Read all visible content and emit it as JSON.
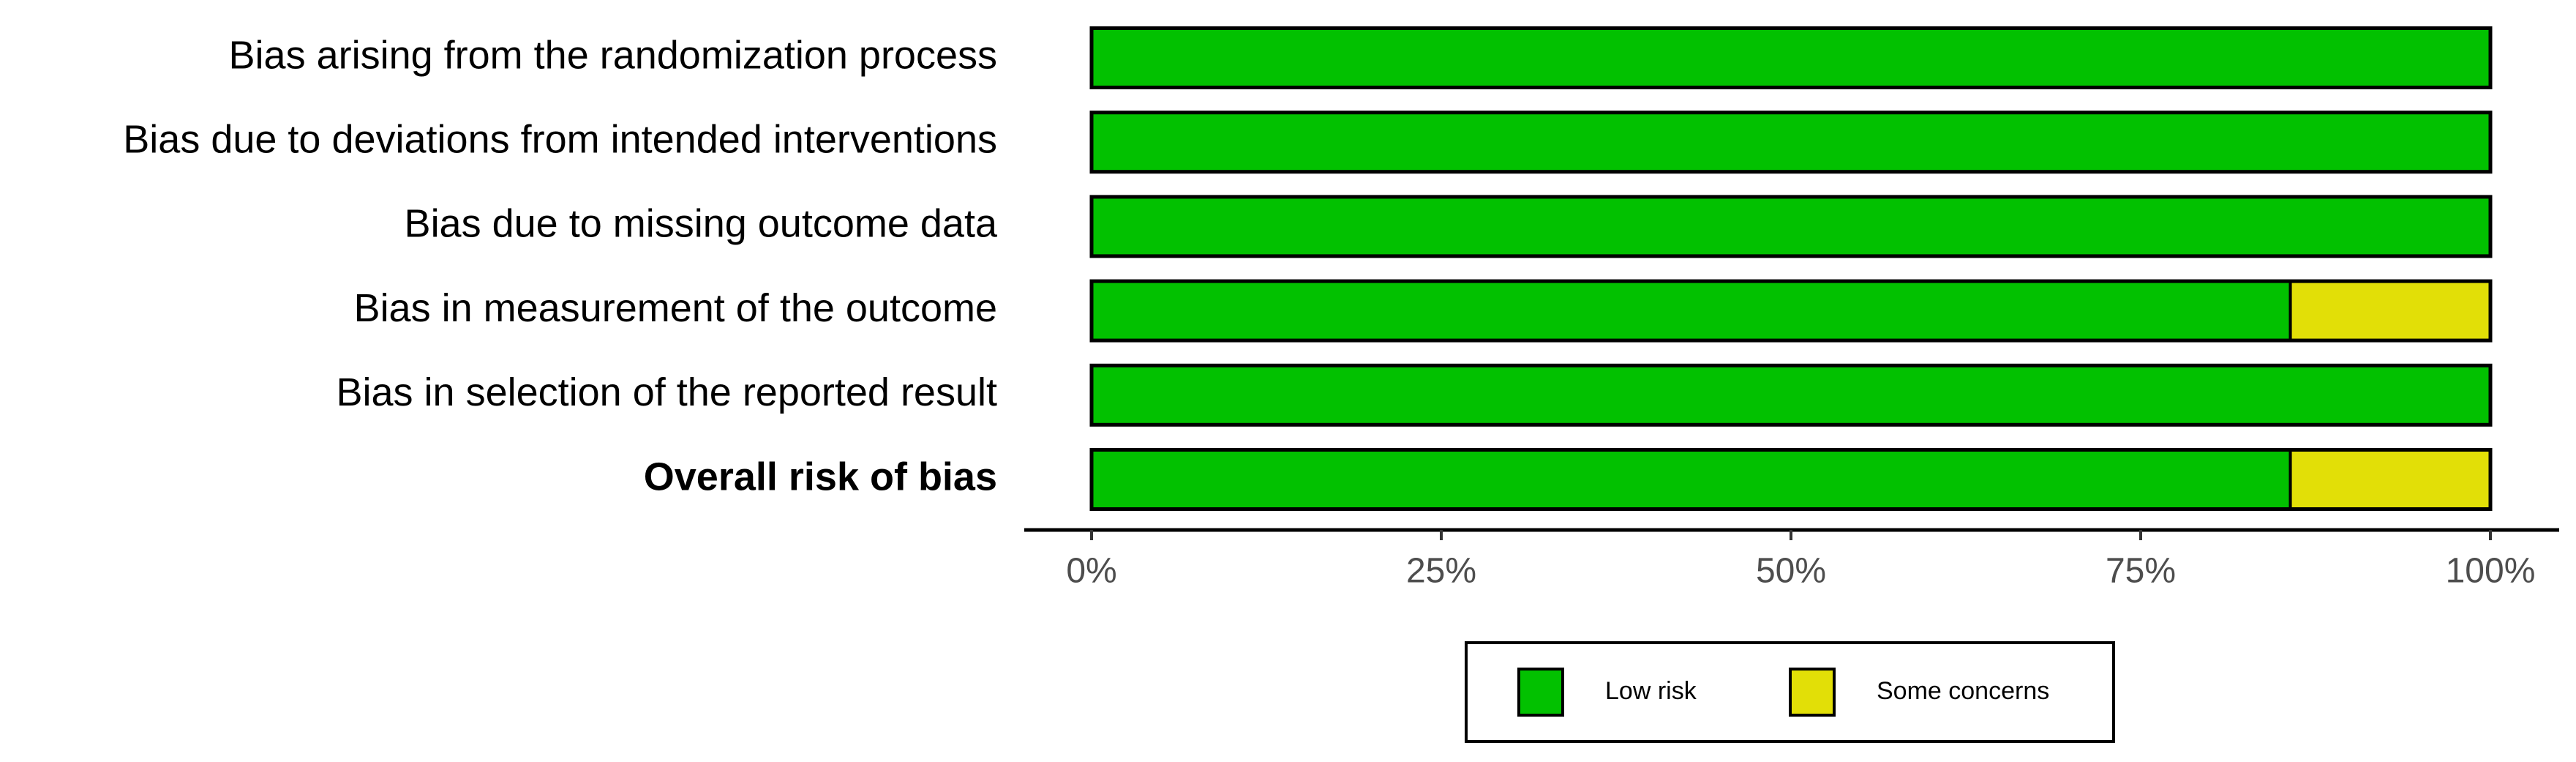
{
  "chart_data": {
    "type": "stacked-bar-horizontal",
    "categories": [
      "Bias arising from the randomization process",
      "Bias due to deviations from intended interventions",
      "Bias due to missing outcome data",
      "Bias in measurement of the outcome",
      "Bias in selection of the reported result",
      "Overall risk of bias"
    ],
    "series": [
      {
        "name": "Low risk",
        "color": "#02c100",
        "values": [
          100,
          100,
          100,
          85.7,
          100,
          85.7
        ]
      },
      {
        "name": "Some concerns",
        "color": "#e2df07",
        "values": [
          0,
          0,
          0,
          14.3,
          0,
          14.3
        ]
      }
    ],
    "xlim": [
      0,
      100
    ],
    "xticks": [
      {
        "value": 0,
        "label": "0%"
      },
      {
        "value": 25,
        "label": "25%"
      },
      {
        "value": 50,
        "label": "50%"
      },
      {
        "value": 75,
        "label": "75%"
      },
      {
        "value": 100,
        "label": "100%"
      }
    ],
    "legend": "bottom"
  }
}
